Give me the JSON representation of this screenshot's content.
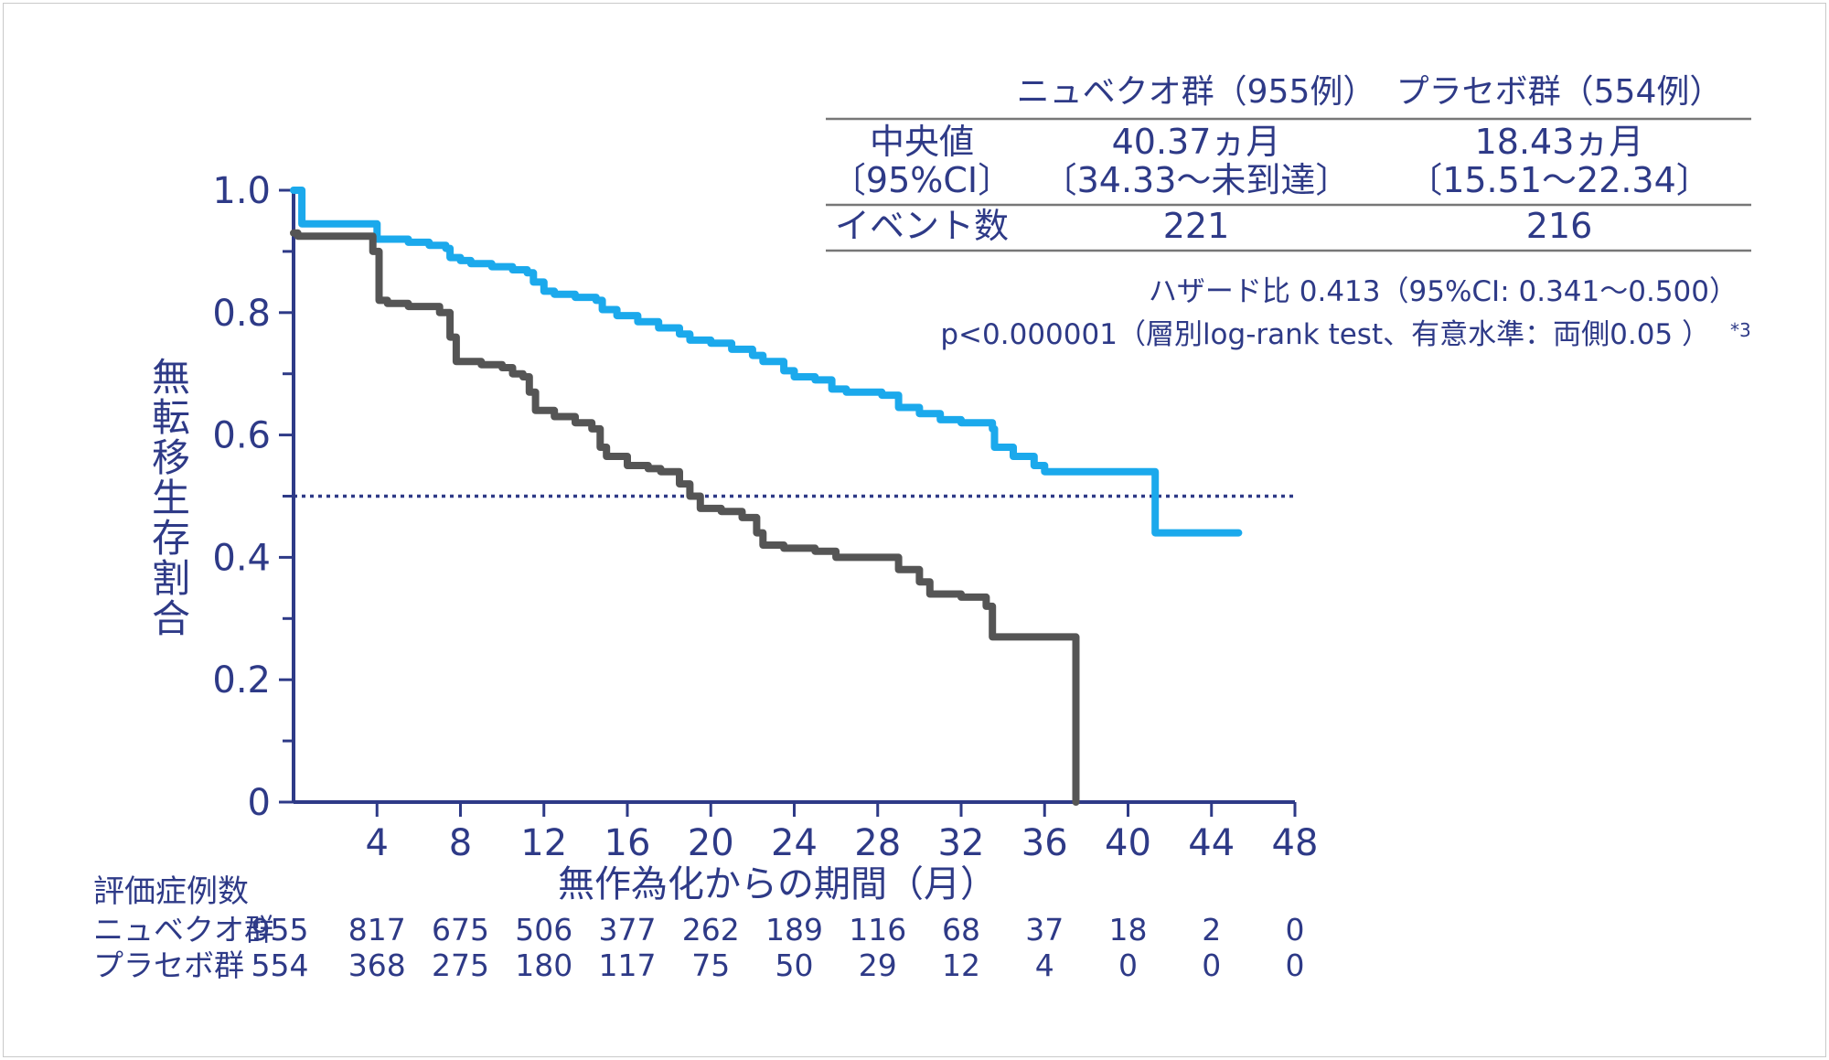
{
  "chart_data": {
    "type": "line",
    "subtype": "kaplan-meier",
    "xlabel": "無作為化からの期間（月）",
    "ylabel": "無転移生存割合",
    "xlim": [
      0,
      48
    ],
    "ylim": [
      0,
      1.0
    ],
    "x_ticks": [
      "4",
      "8",
      "12",
      "16",
      "20",
      "24",
      "28",
      "32",
      "36",
      "40",
      "44",
      "48"
    ],
    "y_ticks": [
      "0",
      "0.2",
      "0.4",
      "0.6",
      "0.8",
      "1.0"
    ],
    "reference_line": {
      "y": 0.5,
      "style": "dotted"
    },
    "series": [
      {
        "name": "ニュベクオ群",
        "color": "#1ba9ec",
        "points": [
          [
            0,
            1.0
          ],
          [
            0.4,
            0.95
          ],
          [
            0.4,
            0.945
          ],
          [
            3.8,
            0.945
          ],
          [
            4.0,
            0.92
          ],
          [
            5.5,
            0.915
          ],
          [
            6.5,
            0.91
          ],
          [
            7.3,
            0.905
          ],
          [
            7.5,
            0.89
          ],
          [
            8.0,
            0.885
          ],
          [
            8.5,
            0.88
          ],
          [
            9.5,
            0.875
          ],
          [
            10.5,
            0.87
          ],
          [
            11.2,
            0.865
          ],
          [
            11.5,
            0.85
          ],
          [
            12.0,
            0.835
          ],
          [
            12.5,
            0.83
          ],
          [
            13.5,
            0.825
          ],
          [
            14.5,
            0.82
          ],
          [
            14.8,
            0.805
          ],
          [
            15.5,
            0.795
          ],
          [
            16.5,
            0.785
          ],
          [
            17.5,
            0.775
          ],
          [
            18.5,
            0.765
          ],
          [
            19.0,
            0.755
          ],
          [
            20.0,
            0.75
          ],
          [
            21.0,
            0.74
          ],
          [
            22.0,
            0.73
          ],
          [
            22.5,
            0.72
          ],
          [
            23.5,
            0.705
          ],
          [
            24.0,
            0.695
          ],
          [
            25.0,
            0.69
          ],
          [
            25.8,
            0.675
          ],
          [
            26.5,
            0.67
          ],
          [
            27.5,
            0.67
          ],
          [
            28.2,
            0.665
          ],
          [
            29.0,
            0.645
          ],
          [
            30.0,
            0.635
          ],
          [
            31.0,
            0.625
          ],
          [
            32.0,
            0.62
          ],
          [
            33.5,
            0.61
          ],
          [
            33.6,
            0.58
          ],
          [
            34.5,
            0.565
          ],
          [
            35.5,
            0.55
          ],
          [
            36.0,
            0.54
          ],
          [
            37.5,
            0.54
          ],
          [
            40.0,
            0.54
          ],
          [
            41.0,
            0.54
          ],
          [
            41.3,
            0.44
          ],
          [
            43.0,
            0.44
          ],
          [
            45.3,
            0.44
          ]
        ]
      },
      {
        "name": "プラセボ群",
        "color": "#555555",
        "points": [
          [
            0,
            0.93
          ],
          [
            0.2,
            0.925
          ],
          [
            3.4,
            0.925
          ],
          [
            3.8,
            0.9
          ],
          [
            4.1,
            0.82
          ],
          [
            4.5,
            0.815
          ],
          [
            5.5,
            0.81
          ],
          [
            7.0,
            0.8
          ],
          [
            7.5,
            0.76
          ],
          [
            7.8,
            0.72
          ],
          [
            9.0,
            0.715
          ],
          [
            10.0,
            0.71
          ],
          [
            10.5,
            0.7
          ],
          [
            11.0,
            0.695
          ],
          [
            11.3,
            0.67
          ],
          [
            11.6,
            0.64
          ],
          [
            12.5,
            0.63
          ],
          [
            13.5,
            0.62
          ],
          [
            14.3,
            0.61
          ],
          [
            14.7,
            0.58
          ],
          [
            15.0,
            0.565
          ],
          [
            16.0,
            0.55
          ],
          [
            17.0,
            0.545
          ],
          [
            17.6,
            0.54
          ],
          [
            18.5,
            0.52
          ],
          [
            19.0,
            0.5
          ],
          [
            19.5,
            0.48
          ],
          [
            20.5,
            0.475
          ],
          [
            21.5,
            0.465
          ],
          [
            22.2,
            0.44
          ],
          [
            22.5,
            0.42
          ],
          [
            23.5,
            0.415
          ],
          [
            25.0,
            0.41
          ],
          [
            26.0,
            0.4
          ],
          [
            28.0,
            0.4
          ],
          [
            29.0,
            0.38
          ],
          [
            30.0,
            0.36
          ],
          [
            30.5,
            0.34
          ],
          [
            32.0,
            0.335
          ],
          [
            33.2,
            0.32
          ],
          [
            33.5,
            0.27
          ],
          [
            34.5,
            0.27
          ],
          [
            37.0,
            0.27
          ],
          [
            37.5,
            0.18
          ],
          [
            37.5,
            0.0
          ]
        ]
      }
    ]
  },
  "summary_table": {
    "col_nubeqa": "ニュベクオ群（955例）",
    "col_placebo": "プラセボ群（554例）",
    "row1_label_a": "中央値",
    "row1_label_b": "〔95%CI〕",
    "nubeqa_median": "40.37ヵ月",
    "nubeqa_ci": "〔34.33～未到達〕",
    "placebo_median": "18.43ヵ月",
    "placebo_ci": "〔15.51～22.34〕",
    "row2_label": "イベント数",
    "nubeqa_events": "221",
    "placebo_events": "216"
  },
  "annotations": {
    "hazard": "ハザード比 0.413（95%CI: 0.341～0.500）",
    "pvalue": "p<0.000001（層別log-rank test、有意水準：両側0.05 ）",
    "footnote": "*3"
  },
  "at_risk": {
    "title": "評価症例数",
    "rows": [
      {
        "label": "ニュベクオ群",
        "values": [
          "955",
          "817",
          "675",
          "506",
          "377",
          "262",
          "189",
          "116",
          "68",
          "37",
          "18",
          "2",
          "0"
        ]
      },
      {
        "label": "プラセボ群",
        "values": [
          "554",
          "368",
          "275",
          "180",
          "117",
          "75",
          "50",
          "29",
          "12",
          "4",
          "0",
          "0",
          "0"
        ]
      }
    ]
  }
}
